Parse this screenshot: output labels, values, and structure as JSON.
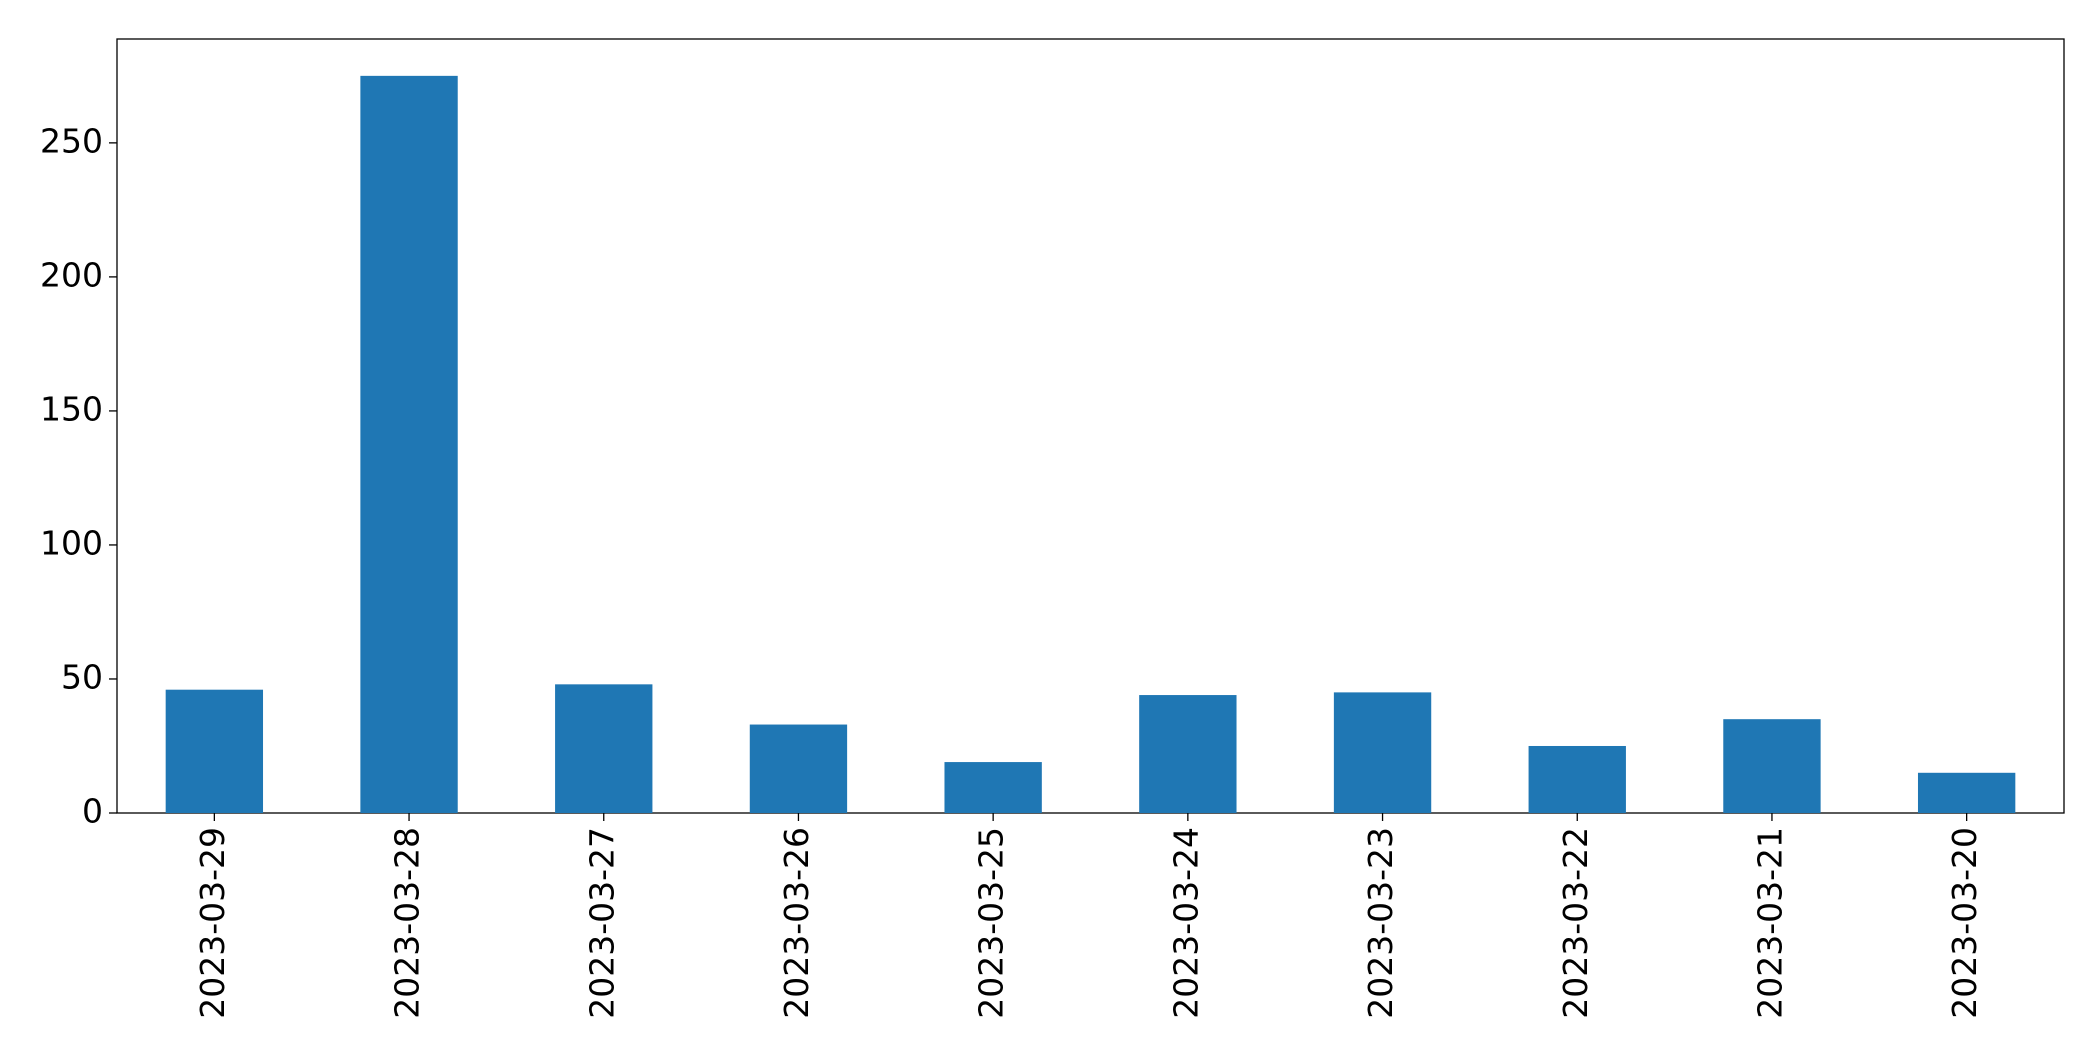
{
  "chart_data": {
    "type": "bar",
    "categories": [
      "2023-03-29",
      "2023-03-28",
      "2023-03-27",
      "2023-03-26",
      "2023-03-25",
      "2023-03-24",
      "2023-03-23",
      "2023-03-22",
      "2023-03-21",
      "2023-03-20"
    ],
    "values": [
      46,
      275,
      48,
      33,
      19,
      44,
      45,
      25,
      35,
      15
    ],
    "color": "#1f77b4",
    "ylim": [
      0,
      288.75
    ],
    "yticks": [
      0,
      50,
      100,
      150,
      200,
      250
    ],
    "grid": false
  }
}
